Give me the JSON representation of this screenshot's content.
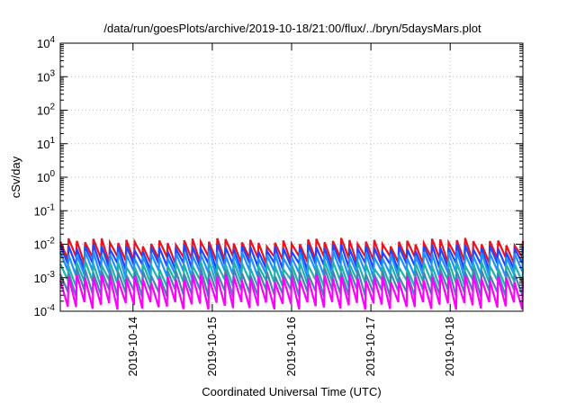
{
  "chart_data": {
    "type": "line",
    "title": "/data/run/goesPlots/archive/2019-10-18/21:00/flux/../bryn/5daysMars.plot",
    "xlabel": "Coordinated Universal Time (UTC)",
    "ylabel": "cSv/day",
    "x_range": [
      "2019-10-13 02:00",
      "2019-10-18 22:00"
    ],
    "x_ticks": [
      {
        "date": "2019-10-14 00:00",
        "label": "2019-10-14"
      },
      {
        "date": "2019-10-15 00:00",
        "label": "2019-10-15"
      },
      {
        "date": "2019-10-16 00:00",
        "label": "2019-10-16"
      },
      {
        "date": "2019-10-17 00:00",
        "label": "2019-10-17"
      },
      {
        "date": "2019-10-18 00:00",
        "label": "2019-10-18"
      }
    ],
    "y_scale": "log",
    "ylim": [
      0.0001,
      10000
    ],
    "y_ticks": [
      {
        "value": 10000,
        "base": "10",
        "exp": "4"
      },
      {
        "value": 1000,
        "base": "10",
        "exp": "3"
      },
      {
        "value": 100,
        "base": "10",
        "exp": "2"
      },
      {
        "value": 10,
        "base": "10",
        "exp": "1"
      },
      {
        "value": 1,
        "base": "10",
        "exp": "0"
      },
      {
        "value": 0.1,
        "base": "10",
        "exp": "-1"
      },
      {
        "value": 0.01,
        "base": "10",
        "exp": "-2"
      },
      {
        "value": 0.001,
        "base": "10",
        "exp": "-3"
      },
      {
        "value": 0.0001,
        "base": "10",
        "exp": "-4"
      }
    ],
    "grid": true,
    "legend": "none",
    "pattern": {
      "type": "sawtooth",
      "period_hours": 2.5,
      "start": "2019-10-13 02:00",
      "end": "2019-10-18 22:00"
    },
    "series": [
      {
        "color": "#e8141e",
        "peak": 0.012,
        "trough": 0.0035
      },
      {
        "color": "#2244ff",
        "peak": 0.008,
        "trough": 0.0022
      },
      {
        "color": "#1e90ff",
        "peak": 0.005,
        "trough": 0.0013
      },
      {
        "color": "#20b2aa",
        "peak": 0.0025,
        "trough": 0.0007
      },
      {
        "color": "#4682b4",
        "peak": 0.0015,
        "trough": 0.00035
      },
      {
        "color": "#ff00ff",
        "peak": 0.001,
        "trough": 0.00015
      }
    ]
  }
}
